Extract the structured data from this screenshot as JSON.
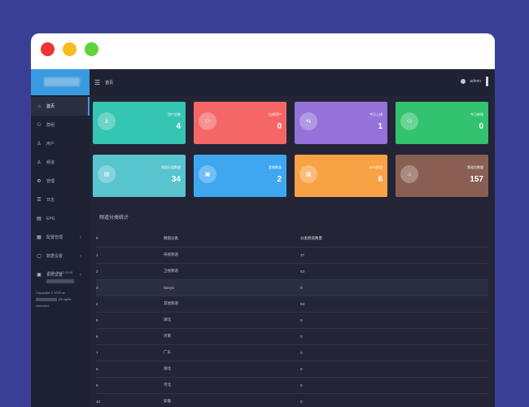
{
  "window": {
    "controls": [
      "close",
      "minimize",
      "maximize"
    ]
  },
  "sidebar": {
    "brand_icon": "blurred-logo",
    "items": [
      {
        "label": "首页",
        "icon": "home-icon",
        "active": true,
        "arrow": ""
      },
      {
        "label": "群组",
        "icon": "users-icon",
        "active": false,
        "arrow": ""
      },
      {
        "label": "用户",
        "icon": "user-icon",
        "active": false,
        "arrow": ""
      },
      {
        "label": "频道",
        "icon": "channel-icon",
        "active": false,
        "arrow": ""
      },
      {
        "label": "管理",
        "icon": "admin-icon",
        "active": false,
        "arrow": ""
      },
      {
        "label": "日志",
        "icon": "log-icon",
        "active": false,
        "arrow": ""
      },
      {
        "label": "EPG",
        "icon": "epg-icon",
        "active": false,
        "arrow": ""
      },
      {
        "label": "配置管理",
        "icon": "config-icon",
        "active": false,
        "arrow": "‹"
      },
      {
        "label": "数据设置",
        "icon": "data-icon",
        "active": false,
        "arrow": "‹"
      },
      {
        "label": "系统设置",
        "icon": "settings-icon",
        "active": false,
        "arrow": "‹"
      }
    ],
    "footer_time": "2020-08-13 12:01",
    "footer_copyright_1": "Copyright © 2020 ar",
    "footer_copyright_2": "All rights",
    "footer_copyright_3": "reserved."
  },
  "topbar": {
    "menu_glyph": "☰",
    "breadcrumb": "首页",
    "username": "admin"
  },
  "cards": [
    {
      "title": "用户总数",
      "value": "4",
      "color": "#35c6b3",
      "icon_glyph": "♙"
    },
    {
      "title": "在线用户",
      "value": "0",
      "color": "#f56767",
      "icon_glyph": "⚇"
    },
    {
      "title": "今日上线",
      "value": "1",
      "color": "#9572d9",
      "icon_glyph": "⇆"
    },
    {
      "title": "今日新增",
      "value": "0",
      "color": "#33c26f",
      "icon_glyph": "⚇"
    },
    {
      "title": "频道分类数量",
      "value": "34",
      "color": "#58c4ce",
      "icon_glyph": "▤"
    },
    {
      "title": "套餐数量",
      "value": "2",
      "color": "#3fa7f0",
      "icon_glyph": "▣"
    },
    {
      "title": "EPG数量",
      "value": "6",
      "color": "#f8a246",
      "icon_glyph": "▦"
    },
    {
      "title": "频道总数量",
      "value": "157",
      "color": "#8a5f53",
      "icon_glyph": "⌂"
    }
  ],
  "panel": {
    "title": "频道分类统计",
    "headers": [
      "#",
      "频道分类",
      "分类频道数量"
    ],
    "rows": [
      [
        "1",
        "央视频道",
        "37"
      ],
      [
        "2",
        "卫视频道",
        "53"
      ],
      [
        "3",
        "Sanya",
        "0"
      ],
      [
        "4",
        "其他频道",
        "53"
      ],
      [
        "5",
        "湖北",
        "0"
      ],
      [
        "6",
        "河南",
        "0"
      ],
      [
        "7",
        "广东",
        "0"
      ],
      [
        "8",
        "湖北",
        "0"
      ],
      [
        "9",
        "河北",
        "0"
      ],
      [
        "10",
        "安徽",
        "0"
      ]
    ],
    "highlight_row": 2
  }
}
